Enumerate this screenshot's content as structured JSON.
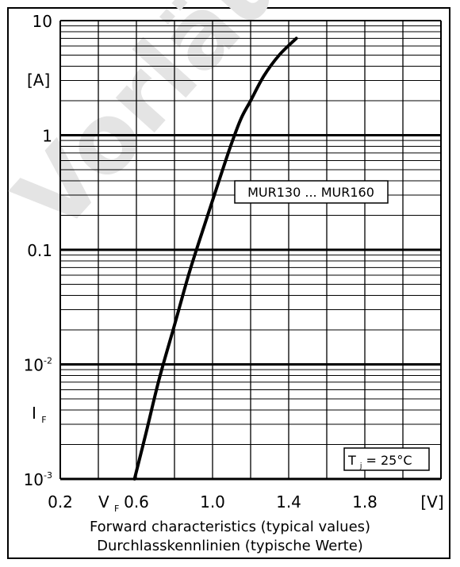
{
  "watermark": {
    "text": "Vorläufige",
    "color": "#e4e4e4"
  },
  "chart_data": {
    "type": "line",
    "x_axis": {
      "scale": "linear",
      "range": [
        0.2,
        2.2
      ],
      "unit": "[V]",
      "symbol": "V",
      "symbol_sub": "F",
      "tick_labels": [
        "0.2",
        "0.6",
        "1.0",
        "1.4",
        "1.8"
      ]
    },
    "y_axis": {
      "scale": "log",
      "range": [
        0.001,
        10
      ],
      "unit": "[A]",
      "symbol": "I",
      "symbol_sub": "F",
      "tick_labels": [
        {
          "base": "10",
          "exp": "-3"
        },
        {
          "base": "10",
          "exp": "-2"
        },
        {
          "base": "0.1",
          "exp": ""
        },
        {
          "base": "1",
          "exp": ""
        },
        {
          "base": "10",
          "exp": ""
        }
      ]
    },
    "grid": true,
    "series": [
      {
        "name": "MUR130 ... MUR160",
        "color": "#000000",
        "x": [
          0.59,
          0.65,
          0.72,
          0.8,
          0.88,
          0.97,
          1.04,
          1.1,
          1.15,
          1.2,
          1.27,
          1.35,
          1.44
        ],
        "y": [
          0.001,
          0.0025,
          0.0075,
          0.022,
          0.065,
          0.19,
          0.43,
          0.85,
          1.4,
          2.0,
          3.3,
          5.0,
          7.0
        ]
      }
    ],
    "annotations": [
      {
        "text": "MUR130 ... MUR160"
      },
      {
        "text_main": "T",
        "text_sub": "j",
        "text_rest": " = 25°C"
      }
    ]
  },
  "captions": {
    "line1": "Forward characteristics (typical values)",
    "line2": "Durchlasskennlinien (typische Werte)"
  }
}
